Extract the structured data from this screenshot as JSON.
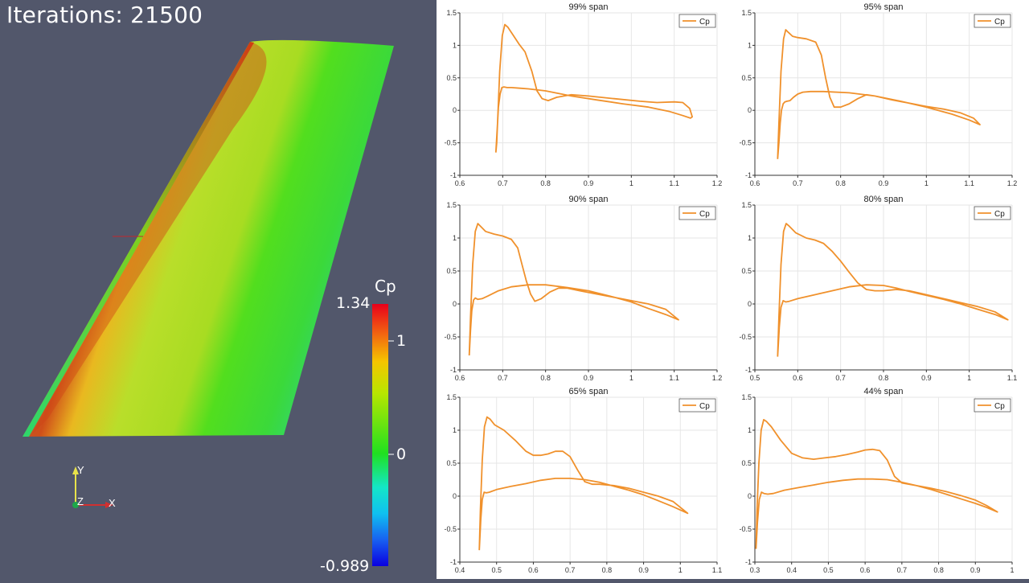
{
  "viewport": {
    "iterations_label": "Iterations: 21500",
    "colorbar": {
      "title": "Cp",
      "max_label": "1.34",
      "mid_label": "1",
      "zero_label": "0",
      "min_label": "-0.989",
      "colors": [
        "#ff0000",
        "#ffa500",
        "#ffff00",
        "#32cd32",
        "#00ffcc",
        "#1e90ff",
        "#0000ff"
      ]
    },
    "axes": {
      "y_label": "Y",
      "z_label": "Z",
      "x_label": "X"
    }
  },
  "colors": {
    "cp_line": "#f0912c",
    "background": "#52576b"
  },
  "chart_data": [
    {
      "type": "line",
      "title": "99% span",
      "x_ticks": [
        "0.6",
        "0.7",
        "0.8",
        "0.9",
        "1",
        "1.1",
        "1.2"
      ],
      "y_ticks": [
        "1.5",
        "1",
        "0.5",
        "0",
        "-0.5",
        "-1"
      ],
      "xlim": [
        0.6,
        1.2
      ],
      "ylim": [
        -1,
        1.5
      ],
      "legend": "Cp",
      "legend_position": "top-right",
      "grid": true,
      "series": [
        {
          "name": "Cp",
          "x": [
            0.684,
            0.688,
            0.693,
            0.699,
            0.705,
            0.712,
            0.722,
            0.738,
            0.752,
            0.768,
            0.78,
            0.792,
            0.806,
            0.826,
            0.86,
            0.9,
            0.96,
            1.02,
            1.06,
            1.1,
            1.12,
            1.136,
            1.142,
            1.138,
            1.12,
            1.09,
            1.04,
            0.98,
            0.92,
            0.86,
            0.8,
            0.76,
            0.74,
            0.72,
            0.71,
            0.703,
            0.698,
            0.694,
            0.69,
            0.688,
            0.686,
            0.684
          ],
          "y": [
            -0.65,
            -0.2,
            0.6,
            1.15,
            1.32,
            1.28,
            1.18,
            1.02,
            0.9,
            0.6,
            0.3,
            0.18,
            0.15,
            0.2,
            0.24,
            0.22,
            0.18,
            0.14,
            0.12,
            0.13,
            0.12,
            0.03,
            -0.1,
            -0.12,
            -0.08,
            -0.02,
            0.05,
            0.1,
            0.16,
            0.22,
            0.3,
            0.33,
            0.34,
            0.35,
            0.35,
            0.36,
            0.35,
            0.25,
            0.05,
            -0.2,
            -0.5,
            -0.65
          ]
        }
      ]
    },
    {
      "type": "line",
      "title": "95% span",
      "x_ticks": [
        "0.6",
        "0.7",
        "0.8",
        "0.9",
        "1",
        "1.1",
        "1.2"
      ],
      "y_ticks": [
        "1.5",
        "1",
        "0.5",
        "0",
        "-0.5",
        "-1"
      ],
      "xlim": [
        0.6,
        1.2
      ],
      "ylim": [
        -1,
        1.5
      ],
      "legend": "Cp",
      "legend_position": "top-right",
      "grid": true,
      "series": [
        {
          "name": "Cp",
          "x": [
            0.653,
            0.656,
            0.661,
            0.667,
            0.672,
            0.678,
            0.688,
            0.7,
            0.72,
            0.742,
            0.755,
            0.765,
            0.775,
            0.785,
            0.8,
            0.82,
            0.84,
            0.86,
            0.88,
            0.92,
            0.96,
            1.0,
            1.04,
            1.08,
            1.11,
            1.125,
            1.1,
            1.06,
            1.0,
            0.94,
            0.88,
            0.82,
            0.76,
            0.73,
            0.712,
            0.7,
            0.69,
            0.682,
            0.675,
            0.67,
            0.666,
            0.662,
            0.659,
            0.656,
            0.653
          ],
          "y": [
            -0.75,
            -0.2,
            0.6,
            1.1,
            1.24,
            1.2,
            1.14,
            1.12,
            1.1,
            1.05,
            0.85,
            0.5,
            0.2,
            0.05,
            0.05,
            0.1,
            0.18,
            0.24,
            0.22,
            0.16,
            0.11,
            0.06,
            0.02,
            -0.04,
            -0.12,
            -0.22,
            -0.15,
            -0.06,
            0.05,
            0.14,
            0.22,
            0.27,
            0.29,
            0.29,
            0.28,
            0.25,
            0.2,
            0.15,
            0.14,
            0.13,
            0.1,
            0.0,
            -0.2,
            -0.5,
            -0.75
          ]
        }
      ]
    },
    {
      "type": "line",
      "title": "90% span",
      "x_ticks": [
        "0.6",
        "0.7",
        "0.8",
        "0.9",
        "1",
        "1.1",
        "1.2"
      ],
      "y_ticks": [
        "1.5",
        "1",
        "0.5",
        "0",
        "-0.5",
        "-1"
      ],
      "xlim": [
        0.6,
        1.2
      ],
      "ylim": [
        -1,
        1.5
      ],
      "legend": "Cp",
      "legend_position": "top-right",
      "grid": true,
      "series": [
        {
          "name": "Cp",
          "x": [
            0.622,
            0.625,
            0.63,
            0.636,
            0.642,
            0.648,
            0.66,
            0.68,
            0.7,
            0.72,
            0.735,
            0.745,
            0.755,
            0.765,
            0.775,
            0.79,
            0.81,
            0.83,
            0.85,
            0.88,
            0.92,
            0.96,
            1.0,
            1.04,
            1.08,
            1.11,
            1.08,
            1.04,
            1.0,
            0.95,
            0.9,
            0.85,
            0.8,
            0.76,
            0.72,
            0.69,
            0.665,
            0.652,
            0.642,
            0.636,
            0.632,
            0.628,
            0.625,
            0.622
          ],
          "y": [
            -0.78,
            -0.2,
            0.6,
            1.1,
            1.22,
            1.18,
            1.1,
            1.06,
            1.03,
            0.98,
            0.85,
            0.6,
            0.35,
            0.15,
            0.04,
            0.08,
            0.18,
            0.24,
            0.24,
            0.2,
            0.15,
            0.1,
            0.05,
            0.0,
            -0.08,
            -0.24,
            -0.16,
            -0.07,
            0.03,
            0.12,
            0.2,
            0.25,
            0.29,
            0.29,
            0.26,
            0.2,
            0.12,
            0.08,
            0.07,
            0.09,
            0.06,
            -0.1,
            -0.4,
            -0.78
          ]
        }
      ]
    },
    {
      "type": "line",
      "title": "80% span",
      "x_ticks": [
        "0.5",
        "0.6",
        "0.7",
        "0.8",
        "0.9",
        "1",
        "1.1"
      ],
      "y_ticks": [
        "1.5",
        "1",
        "0.5",
        "0",
        "-0.5",
        "-1"
      ],
      "xlim": [
        0.5,
        1.1
      ],
      "ylim": [
        -1,
        1.5
      ],
      "legend": "Cp",
      "legend_position": "top-right",
      "grid": true,
      "series": [
        {
          "name": "Cp",
          "x": [
            0.553,
            0.556,
            0.561,
            0.567,
            0.573,
            0.58,
            0.595,
            0.62,
            0.64,
            0.66,
            0.68,
            0.7,
            0.72,
            0.74,
            0.76,
            0.78,
            0.8,
            0.83,
            0.86,
            0.9,
            0.94,
            0.98,
            1.02,
            1.06,
            1.09,
            1.06,
            1.02,
            0.98,
            0.94,
            0.9,
            0.86,
            0.83,
            0.8,
            0.76,
            0.72,
            0.68,
            0.64,
            0.6,
            0.58,
            0.572,
            0.566,
            0.561,
            0.557,
            0.553
          ],
          "y": [
            -0.8,
            -0.2,
            0.6,
            1.1,
            1.22,
            1.18,
            1.08,
            1.0,
            0.97,
            0.92,
            0.8,
            0.65,
            0.48,
            0.32,
            0.22,
            0.2,
            0.2,
            0.22,
            0.2,
            0.14,
            0.08,
            0.02,
            -0.04,
            -0.12,
            -0.24,
            -0.16,
            -0.08,
            0.0,
            0.07,
            0.13,
            0.19,
            0.24,
            0.28,
            0.29,
            0.26,
            0.2,
            0.14,
            0.08,
            0.04,
            0.03,
            0.05,
            -0.05,
            -0.35,
            -0.8
          ]
        }
      ]
    },
    {
      "type": "line",
      "title": "65% span",
      "x_ticks": [
        "0.4",
        "0.5",
        "0.6",
        "0.7",
        "0.8",
        "0.9",
        "1",
        "1.1"
      ],
      "y_ticks": [
        "1.5",
        "1",
        "0.5",
        "0",
        "-0.5",
        "-1"
      ],
      "xlim": [
        0.4,
        1.1
      ],
      "ylim": [
        -1,
        1.5
      ],
      "legend": "Cp",
      "legend_position": "top-right",
      "grid": true,
      "series": [
        {
          "name": "Cp",
          "x": [
            0.453,
            0.456,
            0.461,
            0.467,
            0.474,
            0.482,
            0.495,
            0.52,
            0.55,
            0.58,
            0.6,
            0.62,
            0.64,
            0.66,
            0.68,
            0.7,
            0.72,
            0.74,
            0.76,
            0.78,
            0.82,
            0.86,
            0.9,
            0.94,
            0.98,
            1.02,
            0.98,
            0.94,
            0.9,
            0.86,
            0.82,
            0.78,
            0.74,
            0.7,
            0.66,
            0.62,
            0.58,
            0.54,
            0.5,
            0.48,
            0.472,
            0.466,
            0.461,
            0.457,
            0.453
          ],
          "y": [
            -0.82,
            -0.2,
            0.55,
            1.05,
            1.2,
            1.17,
            1.08,
            1.0,
            0.85,
            0.68,
            0.62,
            0.62,
            0.64,
            0.68,
            0.68,
            0.6,
            0.4,
            0.22,
            0.18,
            0.18,
            0.16,
            0.12,
            0.06,
            0.0,
            -0.08,
            -0.26,
            -0.16,
            -0.07,
            0.02,
            0.09,
            0.15,
            0.21,
            0.25,
            0.27,
            0.27,
            0.24,
            0.19,
            0.15,
            0.1,
            0.06,
            0.05,
            0.06,
            -0.05,
            -0.35,
            -0.82
          ]
        }
      ]
    },
    {
      "type": "line",
      "title": "44% span",
      "x_ticks": [
        "0.3",
        "0.4",
        "0.5",
        "0.6",
        "0.7",
        "0.8",
        "0.9",
        "1"
      ],
      "y_ticks": [
        "1.5",
        "1",
        "0.5",
        "0",
        "-0.5",
        "-1"
      ],
      "xlim": [
        0.3,
        1.0
      ],
      "ylim": [
        -1,
        1.5
      ],
      "legend": "Cp",
      "legend_position": "top-right",
      "grid": true,
      "series": [
        {
          "name": "Cp",
          "x": [
            0.303,
            0.306,
            0.311,
            0.317,
            0.324,
            0.332,
            0.345,
            0.37,
            0.4,
            0.43,
            0.46,
            0.49,
            0.52,
            0.55,
            0.58,
            0.6,
            0.62,
            0.64,
            0.66,
            0.68,
            0.7,
            0.74,
            0.78,
            0.82,
            0.86,
            0.9,
            0.93,
            0.96,
            0.93,
            0.9,
            0.86,
            0.82,
            0.78,
            0.74,
            0.7,
            0.66,
            0.62,
            0.58,
            0.54,
            0.5,
            0.46,
            0.42,
            0.38,
            0.35,
            0.335,
            0.325,
            0.318,
            0.312,
            0.307,
            0.303
          ],
          "y": [
            -0.8,
            -0.2,
            0.5,
            1.0,
            1.16,
            1.13,
            1.05,
            0.85,
            0.65,
            0.58,
            0.56,
            0.58,
            0.6,
            0.63,
            0.67,
            0.7,
            0.71,
            0.69,
            0.55,
            0.3,
            0.2,
            0.16,
            0.12,
            0.07,
            0.01,
            -0.06,
            -0.14,
            -0.24,
            -0.17,
            -0.11,
            -0.04,
            0.03,
            0.1,
            0.16,
            0.21,
            0.25,
            0.26,
            0.26,
            0.24,
            0.21,
            0.17,
            0.13,
            0.09,
            0.04,
            0.03,
            0.04,
            0.06,
            -0.05,
            -0.4,
            -0.8
          ]
        }
      ]
    }
  ]
}
